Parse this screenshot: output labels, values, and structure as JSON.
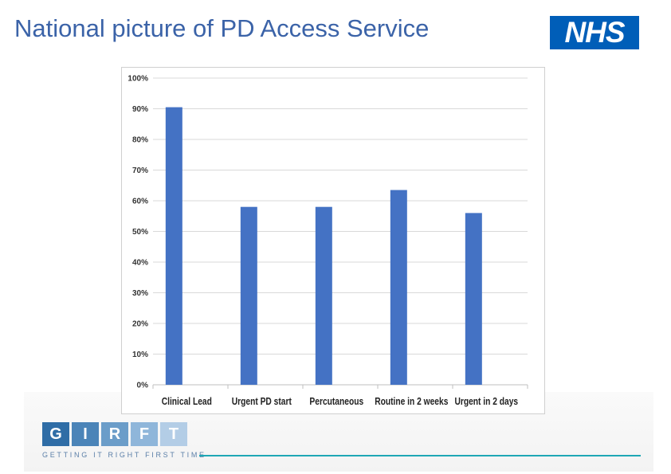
{
  "slide": {
    "title": "National picture of PD Access Service"
  },
  "logos": {
    "nhs_text": "NHS",
    "nhs_color": "#005eb8",
    "girft_letters": [
      "G",
      "I",
      "R",
      "F",
      "T"
    ],
    "girft_colors": [
      "#2f6da6",
      "#4b84b8",
      "#6b9dc9",
      "#8fb6da",
      "#b3cde6"
    ],
    "girft_tagline": "GETTING IT RIGHT FIRST TIME"
  },
  "chart_data": {
    "type": "bar",
    "categories": [
      "Clinical Lead",
      "Urgent PD start",
      "Percutaneous",
      "Routine in 2 weeks",
      "Urgent in 2 days"
    ],
    "series": [
      {
        "values": [
          90.5,
          58,
          58,
          63.5,
          56
        ]
      }
    ],
    "ylim": [
      0,
      100
    ],
    "yticks": [
      0,
      10,
      20,
      30,
      40,
      50,
      60,
      70,
      80,
      90,
      100
    ],
    "ytick_labels": [
      "0%",
      "10%",
      "20%",
      "30%",
      "40%",
      "50%",
      "60%",
      "70%",
      "80%",
      "90%",
      "100%"
    ],
    "grid": true,
    "bar_color": "#4472c4",
    "title": "",
    "xlabel": "",
    "ylabel": ""
  }
}
